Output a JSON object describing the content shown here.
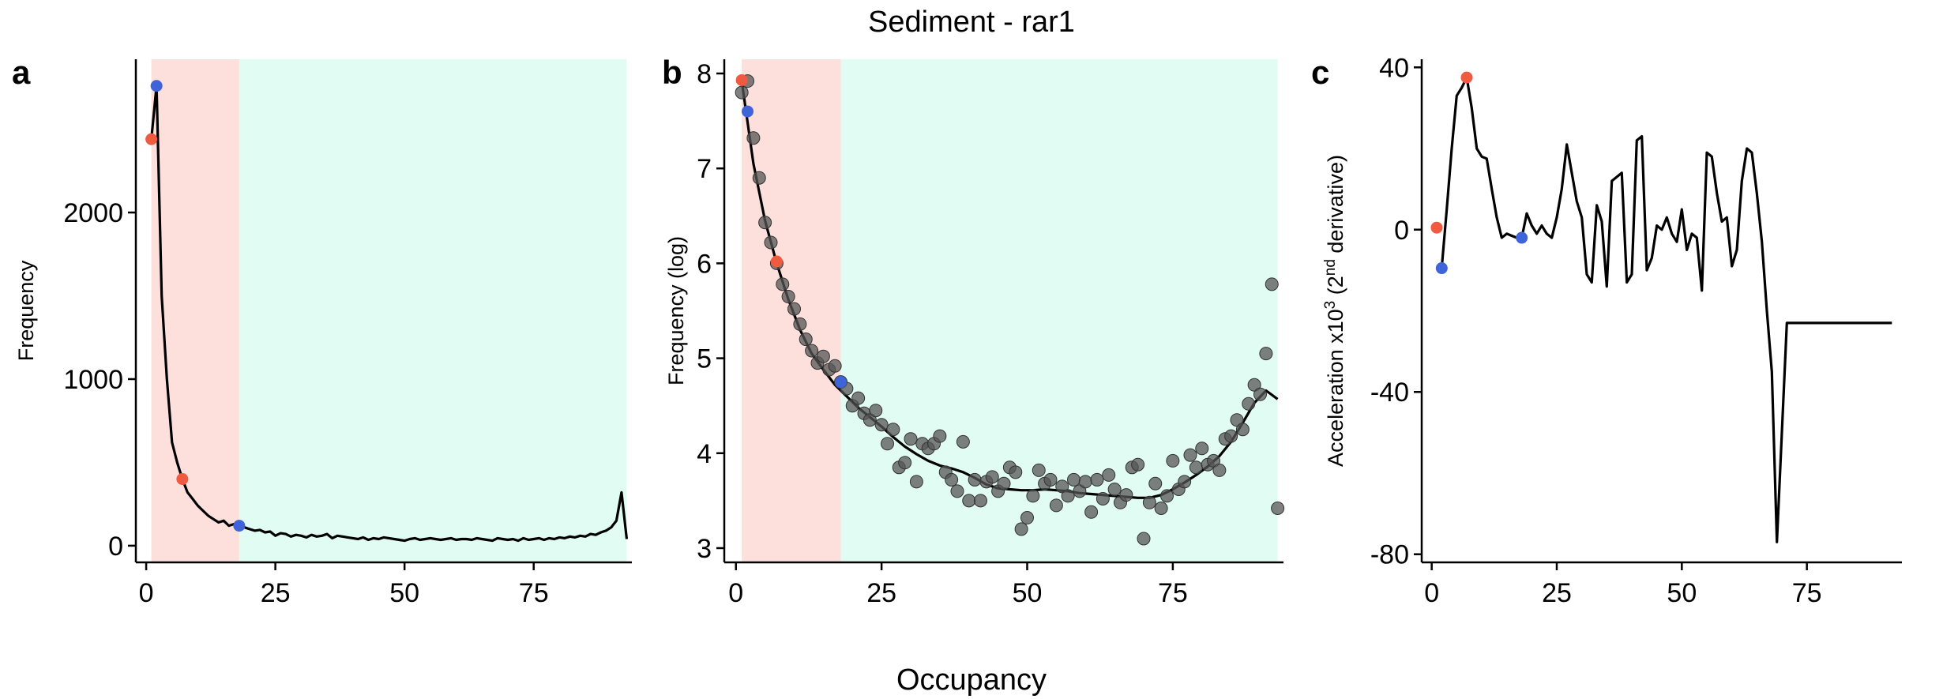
{
  "figure": {
    "title": "Sediment - rar1",
    "xlabel": "Occupancy"
  },
  "colors": {
    "shade_left": "#fde0dc",
    "shade_right": "#e1fcf3",
    "red_point": "#f05a40",
    "blue_point": "#3f63d8",
    "scatter_point": "#555555",
    "line": "#000000"
  },
  "chart_data": [
    {
      "panel": "a",
      "type": "line",
      "ylabel": "Frequency",
      "xlim": [
        -2,
        94
      ],
      "ylim": [
        -100,
        2920
      ],
      "xticks": [
        0,
        25,
        50,
        75
      ],
      "yticks": [
        0,
        1000,
        2000
      ],
      "shaded_regions": [
        {
          "x": [
            1,
            18
          ],
          "fill": "shade_left"
        },
        {
          "x": [
            18,
            93
          ],
          "fill": "shade_right"
        }
      ],
      "series": [
        {
          "style": "line",
          "x": [
            1,
            2,
            3,
            4,
            5,
            6,
            7,
            8,
            9,
            10,
            11,
            12,
            13,
            14,
            15,
            16,
            17,
            18,
            19,
            20,
            21,
            22,
            23,
            24,
            25,
            26,
            27,
            28,
            29,
            30,
            31,
            32,
            33,
            34,
            35,
            36,
            37,
            38,
            39,
            40,
            41,
            42,
            43,
            44,
            45,
            46,
            47,
            48,
            49,
            50,
            51,
            52,
            53,
            54,
            55,
            56,
            57,
            58,
            59,
            60,
            61,
            62,
            63,
            64,
            65,
            66,
            67,
            68,
            69,
            70,
            71,
            72,
            73,
            74,
            75,
            76,
            77,
            78,
            79,
            80,
            81,
            82,
            83,
            84,
            85,
            86,
            87,
            88,
            89,
            90,
            91,
            92,
            93
          ],
          "y": [
            2440,
            2760,
            1500,
            1000,
            620,
            500,
            400,
            320,
            280,
            240,
            210,
            180,
            160,
            140,
            150,
            120,
            130,
            120,
            110,
            100,
            90,
            95,
            80,
            85,
            60,
            75,
            70,
            55,
            65,
            60,
            50,
            65,
            55,
            60,
            70,
            45,
            60,
            55,
            50,
            45,
            40,
            50,
            35,
            45,
            40,
            50,
            45,
            40,
            35,
            30,
            40,
            45,
            35,
            40,
            45,
            40,
            35,
            40,
            45,
            35,
            40,
            40,
            35,
            45,
            40,
            35,
            30,
            45,
            40,
            35,
            40,
            30,
            45,
            35,
            40,
            45,
            35,
            45,
            40,
            50,
            45,
            55,
            50,
            60,
            55,
            70,
            65,
            80,
            90,
            110,
            150,
            320,
            40
          ]
        },
        {
          "style": "points",
          "color": "red_point",
          "x": [
            1,
            7
          ],
          "y": [
            2440,
            400
          ]
        },
        {
          "style": "points",
          "color": "blue_point",
          "x": [
            2,
            18
          ],
          "y": [
            2760,
            120
          ]
        }
      ]
    },
    {
      "panel": "b",
      "type": "scatter",
      "ylabel": "Frequency (log)",
      "xlim": [
        -2,
        94
      ],
      "ylim": [
        2.85,
        8.15
      ],
      "xticks": [
        0,
        25,
        50,
        75
      ],
      "yticks": [
        3,
        4,
        5,
        6,
        7,
        8
      ],
      "shaded_regions": [
        {
          "x": [
            1,
            18
          ],
          "fill": "shade_left"
        },
        {
          "x": [
            18,
            93
          ],
          "fill": "shade_right"
        }
      ],
      "series": [
        {
          "style": "points",
          "color": "scatter_point",
          "x": [
            1,
            2,
            3,
            4,
            5,
            6,
            7,
            8,
            9,
            10,
            11,
            12,
            13,
            14,
            15,
            16,
            17,
            18,
            19,
            20,
            21,
            22,
            23,
            24,
            25,
            26,
            27,
            28,
            29,
            30,
            31,
            32,
            33,
            34,
            35,
            36,
            37,
            38,
            39,
            40,
            41,
            42,
            43,
            44,
            45,
            46,
            47,
            48,
            49,
            50,
            51,
            52,
            53,
            54,
            55,
            56,
            57,
            58,
            59,
            60,
            61,
            62,
            63,
            64,
            65,
            66,
            67,
            68,
            69,
            70,
            71,
            72,
            73,
            74,
            75,
            76,
            77,
            78,
            79,
            80,
            81,
            82,
            83,
            84,
            85,
            86,
            87,
            88,
            89,
            90,
            91,
            92,
            93
          ],
          "y": [
            7.8,
            7.92,
            7.32,
            6.9,
            6.43,
            6.22,
            6.0,
            5.78,
            5.65,
            5.52,
            5.36,
            5.2,
            5.08,
            4.95,
            5.02,
            4.88,
            4.92,
            4.75,
            4.68,
            4.5,
            4.58,
            4.42,
            4.35,
            4.45,
            4.3,
            4.1,
            4.25,
            3.85,
            3.9,
            4.15,
            3.7,
            4.1,
            4.05,
            4.1,
            4.18,
            3.8,
            3.72,
            3.6,
            4.12,
            3.5,
            3.72,
            3.5,
            3.7,
            3.75,
            3.6,
            3.68,
            3.85,
            3.8,
            3.2,
            3.32,
            3.55,
            3.82,
            3.68,
            3.72,
            3.45,
            3.65,
            3.55,
            3.72,
            3.6,
            3.7,
            3.38,
            3.72,
            3.52,
            3.77,
            3.62,
            3.48,
            3.56,
            3.85,
            3.88,
            3.1,
            3.48,
            3.68,
            3.42,
            3.55,
            3.92,
            3.62,
            3.7,
            3.98,
            3.85,
            4.05,
            3.88,
            3.92,
            3.82,
            4.15,
            4.18,
            4.35,
            4.25,
            4.52,
            4.72,
            4.62,
            5.05,
            5.78,
            3.42
          ]
        },
        {
          "style": "line",
          "color": "line",
          "x": [
            1,
            3,
            5,
            7,
            9,
            11,
            13,
            15,
            17,
            19,
            21,
            23,
            25,
            27,
            29,
            31,
            33,
            35,
            37,
            39,
            41,
            43,
            45,
            47,
            49,
            51,
            53,
            55,
            57,
            59,
            61,
            63,
            65,
            67,
            69,
            71,
            73,
            75,
            77,
            79,
            81,
            83,
            85,
            87,
            89,
            91,
            93
          ],
          "y": [
            7.92,
            7.05,
            6.45,
            6.0,
            5.62,
            5.3,
            5.05,
            4.88,
            4.72,
            4.6,
            4.48,
            4.38,
            4.28,
            4.17,
            4.07,
            3.99,
            3.92,
            3.87,
            3.84,
            3.8,
            3.74,
            3.67,
            3.63,
            3.62,
            3.61,
            3.61,
            3.62,
            3.61,
            3.6,
            3.58,
            3.57,
            3.56,
            3.55,
            3.54,
            3.53,
            3.53,
            3.56,
            3.62,
            3.69,
            3.77,
            3.86,
            3.97,
            4.12,
            4.32,
            4.53,
            4.66,
            4.57
          ]
        },
        {
          "style": "points",
          "color": "red_point",
          "x": [
            1,
            7
          ],
          "y": [
            7.93,
            6.02
          ]
        },
        {
          "style": "points",
          "color": "blue_point",
          "x": [
            2,
            18
          ],
          "y": [
            7.6,
            4.75
          ]
        }
      ]
    },
    {
      "panel": "c",
      "type": "line",
      "ylabel_base": "Acceleration x10",
      "ylabel_exp": "3",
      "ylabel_mid": " (2",
      "ylabel_sup": "nd",
      "ylabel_end": " derivative)",
      "xlim": [
        -2,
        94
      ],
      "ylim": [
        -82,
        42
      ],
      "xticks": [
        0,
        25,
        50,
        75
      ],
      "yticks": [
        40,
        0,
        -40,
        -80
      ],
      "series": [
        {
          "style": "line",
          "color": "line",
          "x": [
            2,
            3,
            4,
            5,
            6,
            7,
            8,
            9,
            10,
            11,
            12,
            13,
            14,
            15,
            16,
            17,
            18,
            19,
            20,
            21,
            22,
            23,
            24,
            25,
            26,
            27,
            28,
            29,
            30,
            31,
            32,
            33,
            34,
            35,
            36,
            37,
            38,
            39,
            40,
            41,
            42,
            43,
            44,
            45,
            46,
            47,
            48,
            49,
            50,
            51,
            52,
            53,
            54,
            55,
            56,
            57,
            58,
            59,
            60,
            61,
            62,
            63,
            64,
            65,
            66,
            67,
            68,
            69,
            70,
            71,
            72,
            73,
            74,
            75,
            76,
            77,
            78,
            79,
            80,
            81,
            82,
            83,
            84,
            85,
            86,
            87,
            88,
            89,
            90,
            91,
            92
          ],
          "y": [
            -9.5,
            5,
            20,
            33,
            35,
            37.5,
            30,
            20,
            18,
            17.5,
            10,
            3,
            -2,
            -1,
            -1.5,
            -2,
            -2,
            4,
            1,
            -1,
            1,
            -1,
            -2,
            3,
            10,
            21,
            14,
            7,
            3,
            -11,
            -13,
            6,
            2,
            -14,
            12,
            13,
            14,
            -13,
            -11,
            22,
            23,
            -10,
            -7,
            1,
            0,
            3,
            -1,
            -3,
            5,
            -5,
            -1,
            -2,
            -15,
            19,
            18,
            9,
            2,
            3,
            -9,
            -5,
            12,
            20,
            19,
            9,
            -3,
            -20,
            -35,
            -77,
            -50,
            -23,
            -23,
            -23,
            -23,
            -23,
            -23,
            -23,
            -23,
            -23,
            -23,
            -23,
            -23,
            -23,
            -23,
            -23,
            -23,
            -23,
            -23,
            -23,
            -23,
            -23,
            -23
          ]
        },
        {
          "style": "points",
          "color": "red_point",
          "x": [
            1,
            7
          ],
          "y": [
            0.5,
            37.5
          ]
        },
        {
          "style": "points",
          "color": "blue_point",
          "x": [
            2,
            18
          ],
          "y": [
            -9.5,
            -2
          ]
        }
      ]
    }
  ]
}
